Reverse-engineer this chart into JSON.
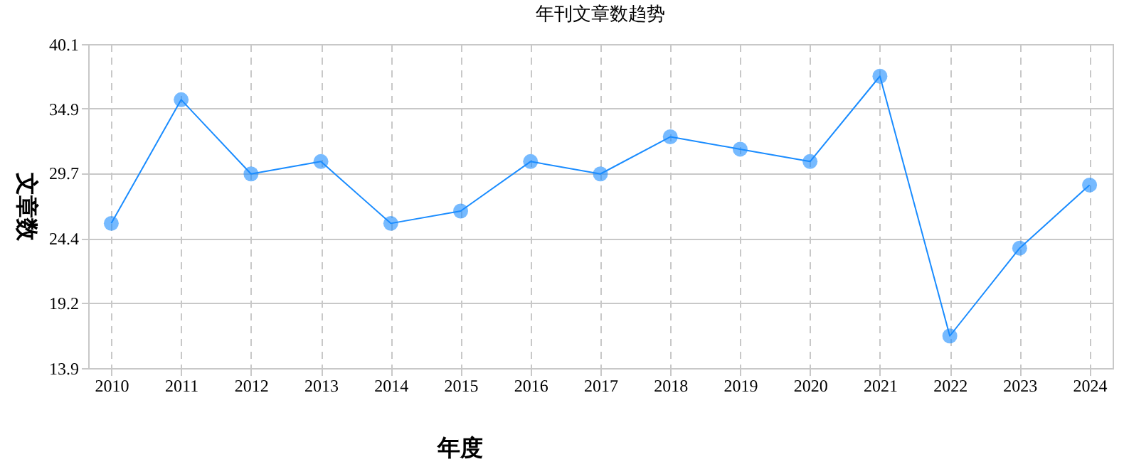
{
  "chart_data": {
    "type": "line",
    "title": "年刊文章数趋势",
    "xlabel": "年度",
    "ylabel": "文章数",
    "categories": [
      "2010",
      "2011",
      "2012",
      "2013",
      "2014",
      "2015",
      "2016",
      "2017",
      "2018",
      "2019",
      "2020",
      "2021",
      "2022",
      "2023",
      "2024"
    ],
    "series": [
      {
        "color": "#1a8cff",
        "values": [
          25.6,
          35.6,
          29.6,
          30.6,
          25.6,
          26.6,
          30.6,
          29.6,
          32.6,
          31.6,
          30.6,
          37.5,
          16.5,
          23.6,
          28.7
        ]
      }
    ],
    "ylim": [
      13.9,
      40.1
    ],
    "yticks": [
      13.9,
      19.2,
      24.4,
      29.7,
      34.9,
      40.1
    ],
    "grid": true,
    "marker": "circle",
    "line_style": "solid"
  }
}
